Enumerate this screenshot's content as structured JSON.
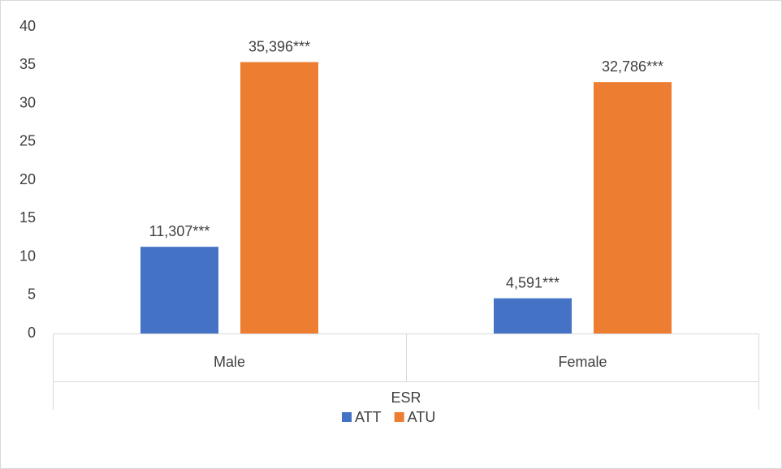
{
  "chart_data": {
    "type": "bar",
    "categories": [
      "Male",
      "Female"
    ],
    "category_group": "ESR",
    "series": [
      {
        "name": "ATT",
        "color": "#4472c4",
        "values": [
          11.307,
          4.591
        ],
        "value_labels": [
          "11,307***",
          "4,591***"
        ]
      },
      {
        "name": "ATU",
        "color": "#ed7d31",
        "values": [
          35.396,
          32.786
        ],
        "value_labels": [
          "35,396***",
          "32,786***"
        ]
      }
    ],
    "ylim": [
      0,
      40
    ],
    "yticks": [
      0,
      5,
      10,
      15,
      20,
      25,
      30,
      35,
      40
    ],
    "grid": false,
    "legend": "bottom"
  }
}
